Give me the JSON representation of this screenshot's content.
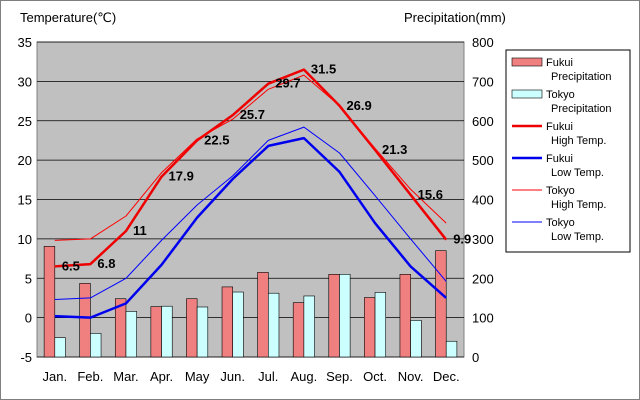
{
  "chart_data": {
    "type": "bar+line",
    "left_axis_title": "Temperature(℃)",
    "right_axis_title": "Precipitation(mm)",
    "ylim_temp": [
      -5,
      35
    ],
    "ylim_precip": [
      0,
      800
    ],
    "temp_ticks": [
      35,
      30,
      25,
      20,
      15,
      10,
      5,
      0,
      -5
    ],
    "precip_ticks": [
      800,
      700,
      600,
      500,
      400,
      300,
      200,
      100,
      0
    ],
    "categories": [
      "Jan.",
      "Feb.",
      "Mar.",
      "Apr.",
      "May",
      "Jun.",
      "Jul.",
      "Aug.",
      "Sep.",
      "Oct.",
      "Nov.",
      "Dec."
    ],
    "series": [
      {
        "name": "Fukui Precipitation",
        "legend": [
          "Fukui",
          "Precipitation"
        ],
        "kind": "bar",
        "axis": "right",
        "color": "#f08080",
        "values": [
          281,
          187,
          148,
          128,
          148,
          178,
          215,
          138,
          210,
          151,
          210,
          270
        ]
      },
      {
        "name": "Tokyo Precipitation",
        "legend": [
          "Tokyo",
          "Precipitation"
        ],
        "kind": "bar",
        "axis": "right",
        "color": "#ccffff",
        "values": [
          49,
          60,
          116,
          129,
          127,
          165,
          162,
          155,
          210,
          164,
          93,
          40
        ]
      },
      {
        "name": "Fukui High Temp.",
        "legend": [
          "Fukui",
          "High Temp."
        ],
        "kind": "line",
        "axis": "left",
        "color": "#ee0000",
        "width": 2.5,
        "values": [
          6.5,
          6.8,
          11,
          17.9,
          22.5,
          25.7,
          29.7,
          31.5,
          26.9,
          21.3,
          15.6,
          9.9
        ]
      },
      {
        "name": "Fukui Low Temp.",
        "legend": [
          "Fukui",
          "Low Temp."
        ],
        "kind": "line",
        "axis": "left",
        "color": "#0000ee",
        "width": 2.5,
        "values": [
          0.2,
          0.0,
          1.8,
          6.7,
          12.7,
          17.6,
          21.8,
          22.8,
          18.5,
          12.0,
          6.5,
          2.5
        ]
      },
      {
        "name": "Tokyo High Temp.",
        "legend": [
          "Tokyo",
          "High Temp."
        ],
        "kind": "line",
        "axis": "left",
        "color": "#ff0000",
        "width": 1,
        "values": [
          9.8,
          10.0,
          12.9,
          18.4,
          22.7,
          25.2,
          29.0,
          30.8,
          26.9,
          21.5,
          16.3,
          12.0
        ]
      },
      {
        "name": "Tokyo Low Temp.",
        "legend": [
          "Tokyo",
          "Low Temp."
        ],
        "kind": "line",
        "axis": "left",
        "color": "#0000ff",
        "width": 1,
        "values": [
          2.3,
          2.5,
          5.0,
          9.8,
          14.3,
          18.0,
          22.5,
          24.2,
          20.9,
          15.5,
          10.0,
          4.6
        ]
      }
    ],
    "data_labels": {
      "series": "Fukui High Temp.",
      "labels": [
        "6.5",
        "6.8",
        "11",
        "17.9",
        "22.5",
        "25.7",
        "29.7",
        "31.5",
        "26.9",
        "21.3",
        "15.6",
        "9.9"
      ]
    },
    "grid": true
  }
}
